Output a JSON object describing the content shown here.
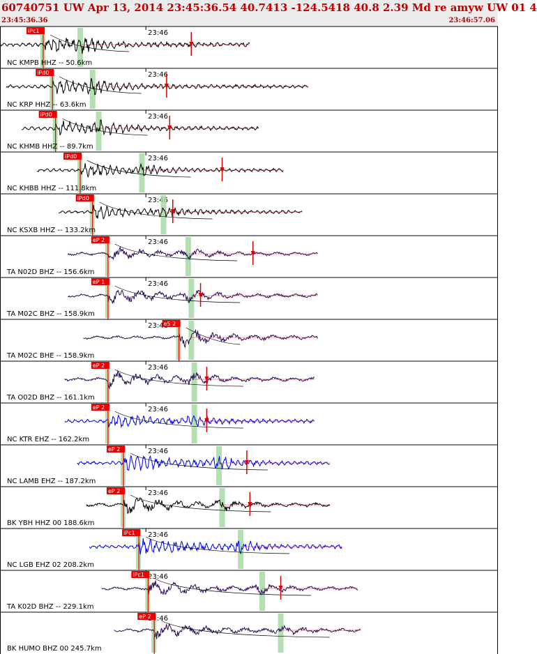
{
  "header": {
    "title": "60740751 UW Apr 13, 2014 23:45:36.54   40.7413 -124.5418 40.8 2.39 Md re amyw UW 01   4",
    "start_time": "23:45:36.36",
    "end_time": "23:46:57.06"
  },
  "chart_data": {
    "type": "line",
    "time_range": [
      "23:45:36.36",
      "23:46:57.06"
    ],
    "minute_tick_label": "23:46",
    "traces": [
      {
        "label": "NC KMPB HHZ -- 50.6km",
        "pick": "iPc1",
        "color": "#000000",
        "pick_s": 7.0,
        "start_s": 0.0,
        "end_s": 40.5,
        "s_s": 13.0,
        "mark_s": 31.0,
        "amp": 1.0
      },
      {
        "label": "NC KRP HHZ -- 63.6km",
        "pick": "iPd0",
        "color": "#000000",
        "pick_s": 8.5,
        "start_s": 1.0,
        "end_s": 50.0,
        "s_s": 15.0,
        "mark_s": 27.0,
        "amp": 0.9
      },
      {
        "label": "NC KHMB HHZ -- 89.7km",
        "pick": "iPd0",
        "color": "#000000",
        "pick_s": 9.0,
        "start_s": 3.5,
        "end_s": 42.0,
        "s_s": 16.0,
        "mark_s": 27.5,
        "amp": 0.9
      },
      {
        "label": "NC KHBB HHZ -- 111.8km",
        "pick": "iPd0",
        "color": "#000000",
        "pick_s": 13.0,
        "start_s": 6.0,
        "end_s": 46.0,
        "s_s": 23.0,
        "mark_s": 36.0,
        "amp": 0.8
      },
      {
        "label": "NC KSXB HHZ -- 133.2km",
        "pick": "iPd0",
        "color": "#000000",
        "pick_s": 15.0,
        "start_s": 9.5,
        "end_s": 49.0,
        "s_s": 26.5,
        "mark_s": 28.0,
        "amp": 0.8
      },
      {
        "label": "TA N02D BHZ -- 156.6km",
        "pick": "eP 2",
        "color": "#2a0a55",
        "pick_s": 17.5,
        "start_s": 11.0,
        "end_s": 51.5,
        "s_s": 30.5,
        "mark_s": 41.0,
        "amp": 0.8
      },
      {
        "label": "TA M02C BHZ -- 158.9km",
        "pick": "eP 1",
        "color": "#2a0a55",
        "pick_s": 17.5,
        "start_s": 11.0,
        "end_s": 51.5,
        "s_s": 31.0,
        "mark_s": 32.5,
        "amp": 0.9
      },
      {
        "label": "TA M02C BHE -- 158.9km",
        "pick": "eS 2",
        "color": "#2a0a55",
        "pick_s": 29.0,
        "start_s": 13.5,
        "end_s": 51.5,
        "s_s": 31.0,
        "mark_s": null,
        "amp": 0.8
      },
      {
        "label": "TA O02D BHZ -- 161.1km",
        "pick": "eP 2",
        "color": "#2a0a55",
        "pick_s": 17.5,
        "start_s": 10.5,
        "end_s": 51.0,
        "s_s": 31.5,
        "mark_s": 33.5,
        "amp": 1.0
      },
      {
        "label": "NC KTR EHZ -- 162.2km",
        "pick": "eP 2",
        "color": "#0000ee",
        "pick_s": 17.5,
        "start_s": 10.5,
        "end_s": 51.0,
        "s_s": 31.5,
        "mark_s": 33.5,
        "amp": 0.9
      },
      {
        "label": "NC LAMB EHZ -- 187.2km",
        "pick": "eP 2",
        "color": "#0000ee",
        "pick_s": 20.0,
        "start_s": 12.5,
        "end_s": 53.5,
        "s_s": 35.5,
        "mark_s": 40.0,
        "amp": 1.0
      },
      {
        "label": "BK YBH HHZ 00 188.6km",
        "pick": "eP 2",
        "color": "#000000",
        "pick_s": 20.0,
        "start_s": 14.0,
        "end_s": 53.5,
        "s_s": 36.0,
        "mark_s": 40.5,
        "amp": 1.0
      },
      {
        "label": "NC LGB EHZ 02 208.2km",
        "pick": "iPc1",
        "color": "#0000ee",
        "pick_s": 22.5,
        "start_s": 14.5,
        "end_s": 55.5,
        "s_s": 39.0,
        "mark_s": null,
        "amp": 1.0
      },
      {
        "label": "TA K02D BHZ -- 229.1km",
        "pick": "iPc1",
        "color": "#2a0a55",
        "pick_s": 24.0,
        "start_s": 16.5,
        "end_s": 58.0,
        "s_s": 42.5,
        "mark_s": 45.5,
        "amp": 0.9
      },
      {
        "label": "BK HUMO BHZ 00 245.7km",
        "pick": "eP 2",
        "color": "#2a0a55",
        "pick_s": 25.0,
        "start_s": 18.5,
        "end_s": 58.5,
        "s_s": 45.5,
        "mark_s": null,
        "amp": 0.9
      }
    ]
  },
  "colors": {
    "pick_flag": "#ee0000",
    "s_window": "#a6d9a6",
    "marker": "#dd0000",
    "header_bg": "#ececec",
    "header_text": "#c00000"
  }
}
